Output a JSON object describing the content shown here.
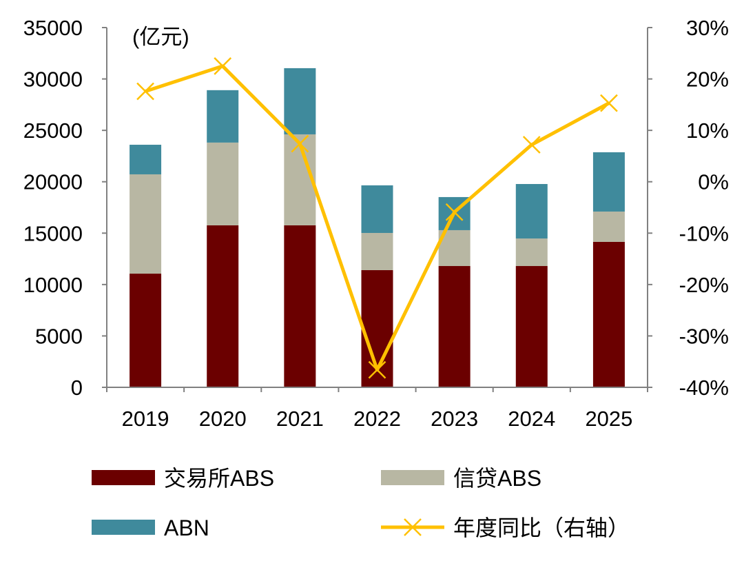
{
  "chart_data": {
    "type": "bar",
    "stacked": true,
    "categories": [
      "2019",
      "2020",
      "2021",
      "2022",
      "2023",
      "2024",
      "2025"
    ],
    "unit_label": "(亿元)",
    "ylim": [
      0,
      35000
    ],
    "yticks": [
      "0",
      "5000",
      "10000",
      "15000",
      "20000",
      "25000",
      "30000",
      "35000"
    ],
    "y2lim": [
      -40,
      30
    ],
    "y2ticks": [
      "-40%",
      "-30%",
      "-20%",
      "-10%",
      "0%",
      "10%",
      "20%",
      "30%"
    ],
    "grid": false,
    "legend_position": "bottom",
    "series": [
      {
        "name": "交易所ABS",
        "type": "bar",
        "axis": "left",
        "color": "#6B0000",
        "values": [
          11060,
          15760,
          15760,
          11400,
          11800,
          11800,
          14150
        ]
      },
      {
        "name": "信贷ABS",
        "type": "bar",
        "axis": "left",
        "color": "#B8B7A3",
        "values": [
          9660,
          8050,
          8850,
          3620,
          3490,
          2680,
          2950
        ]
      },
      {
        "name": "ABN",
        "type": "bar",
        "axis": "left",
        "color": "#3F8A9C",
        "values": [
          2880,
          5100,
          6440,
          4630,
          3220,
          5300,
          5770
        ]
      },
      {
        "name": "年度同比（右轴）",
        "type": "line",
        "axis": "right",
        "color": "#FFC000",
        "marker": "x",
        "values": [
          17.6,
          22.5,
          7.4,
          -36.6,
          -5.9,
          7.2,
          15.3
        ]
      }
    ]
  }
}
